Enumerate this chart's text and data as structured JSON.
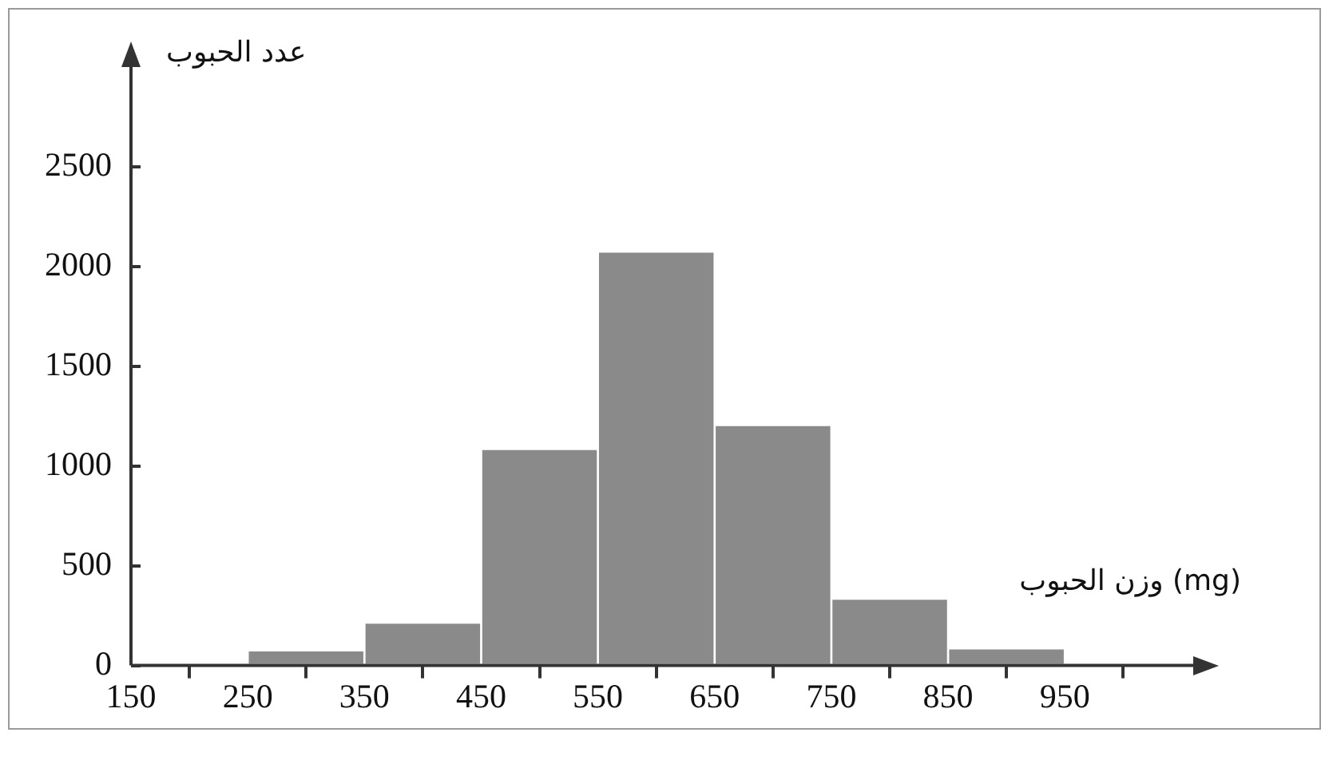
{
  "chart_data": {
    "type": "histogram",
    "xlabel": "وزن الحبوب (mg)",
    "ylabel": "عدد الحبوب",
    "bins": [
      250,
      350,
      450,
      550,
      650,
      750,
      850,
      950
    ],
    "values": [
      70,
      210,
      1080,
      2070,
      1200,
      330,
      80
    ],
    "color": "#8a8a8a",
    "xlim": [
      150,
      1060
    ],
    "xticks": [
      150,
      250,
      350,
      450,
      550,
      650,
      750,
      850,
      950
    ],
    "ylim": [
      0,
      3000
    ],
    "yticks": [
      0,
      500,
      1000,
      1500,
      2000,
      2500
    ],
    "grid": false,
    "legend": false
  }
}
